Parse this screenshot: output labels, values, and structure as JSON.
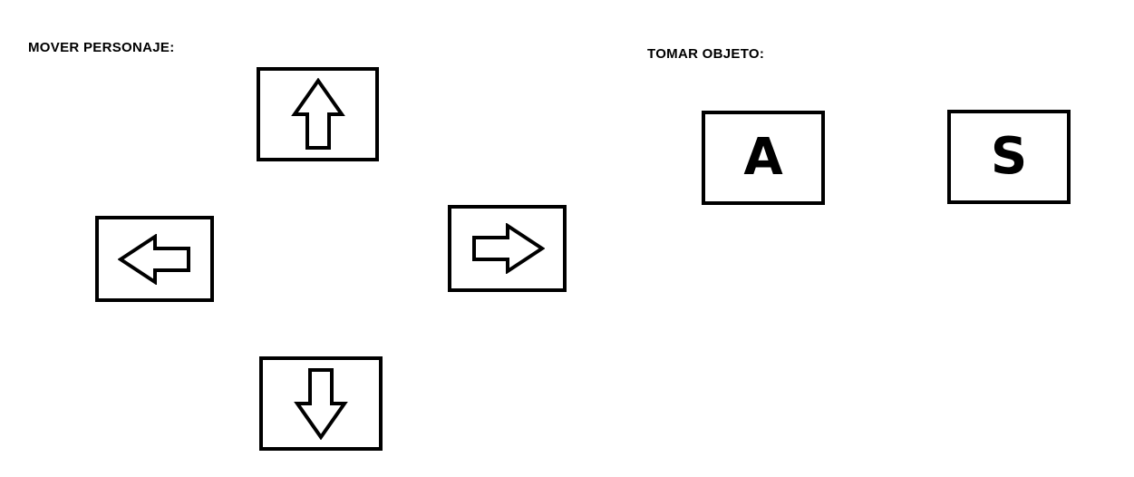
{
  "sections": {
    "move": {
      "title": "MOVER PERSONAJE:",
      "keys": [
        {
          "id": "up",
          "icon": "arrow-up-icon"
        },
        {
          "id": "left",
          "icon": "arrow-left-icon"
        },
        {
          "id": "right",
          "icon": "arrow-right-icon"
        },
        {
          "id": "down",
          "icon": "arrow-down-icon"
        }
      ]
    },
    "take": {
      "title": "TOMAR OBJETO:",
      "keys": [
        {
          "id": "a",
          "label": "A"
        },
        {
          "id": "s",
          "label": "S"
        }
      ]
    }
  },
  "colors": {
    "background": "#ffffff",
    "stroke": "#000000"
  }
}
